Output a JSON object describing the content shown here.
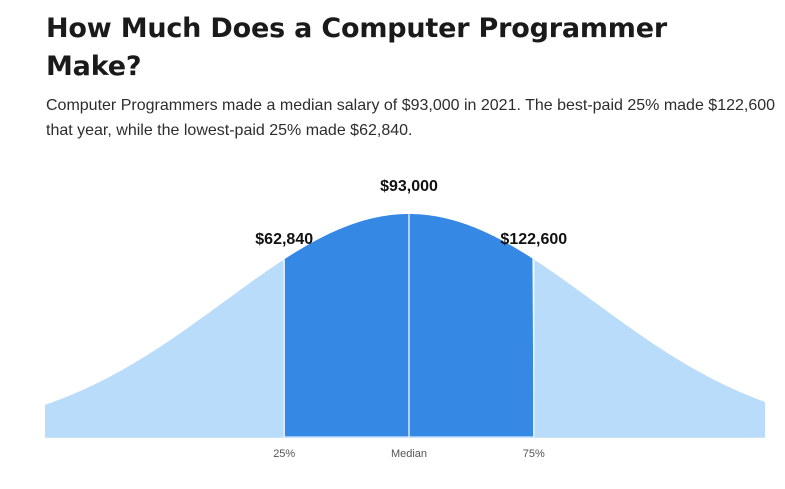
{
  "header": {
    "title": "How Much Does a Computer Programmer Make?",
    "subtitle": "Computer Programmers made a median salary of $93,000 in 2021. The best-paid 25% made $122,600 that year, while the lowest-paid 25% made $62,840."
  },
  "chart_data": {
    "type": "area",
    "distribution": "normal",
    "markers": [
      {
        "percentile": 25,
        "tick_label": "25%",
        "value": 62840,
        "value_label": "$62,840"
      },
      {
        "percentile": 50,
        "tick_label": "Median",
        "value": 93000,
        "value_label": "$93,000"
      },
      {
        "percentile": 75,
        "tick_label": "75%",
        "value": 122600,
        "value_label": "$122,600"
      }
    ],
    "shaded_range": [
      25,
      75
    ],
    "colors": {
      "tails": "#b9dcfa",
      "middle": "#3688e5",
      "baseline": "#b9dcfa",
      "marker_line": "#ffffff"
    },
    "grid": false
  }
}
